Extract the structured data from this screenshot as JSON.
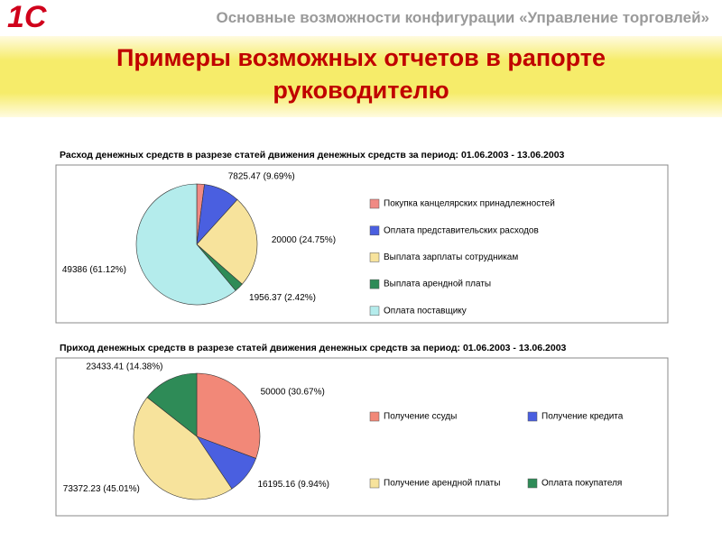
{
  "header": {
    "logo": "1С",
    "title": "Основные возможности конфигурации «Управление торговлей»"
  },
  "slide_title": "Примеры возможных отчетов в рапорте руководителю",
  "chart_data": [
    {
      "type": "pie",
      "title": "Расход денежных средств в разрезе статей движения денежных средств за период: 01.06.2003 - 13.06.2003",
      "categories": [
        "Покупка канцелярских принадлежностей",
        "Оплата представительских расходов",
        "Выплата зарплаты сотрудникам",
        "Выплата арендной платы",
        "Оплата поставщику"
      ],
      "values": [
        1640,
        7825.47,
        20000,
        1956.37,
        49386
      ],
      "value_labels": [
        null,
        "7825.47 (9.69%)",
        "20000 (24.75%)",
        "1956.37 (2.42%)",
        "49386 (61.12%)"
      ],
      "colors": [
        "#f08a84",
        "#4a5fe0",
        "#f7e39c",
        "#2e8b57",
        "#b4ecec"
      ]
    },
    {
      "type": "pie",
      "title": "Приход денежных средств в разрезе статей движения денежных средств за период: 01.06.2003 - 13.06.2003",
      "categories": [
        "Получение ссуды",
        "Получение кредита",
        "Получение арендной платы",
        "Оплата покупателя"
      ],
      "values": [
        50000,
        16195.16,
        73372.23,
        23433.41
      ],
      "value_labels": [
        "50000 (30.67%)",
        "16195.16 (9.94%)",
        "73372.23 (45.01%)",
        "23433.41 (14.38%)"
      ],
      "colors": [
        "#f28878",
        "#4a5fe0",
        "#f7e39c",
        "#2e8b57"
      ]
    }
  ]
}
